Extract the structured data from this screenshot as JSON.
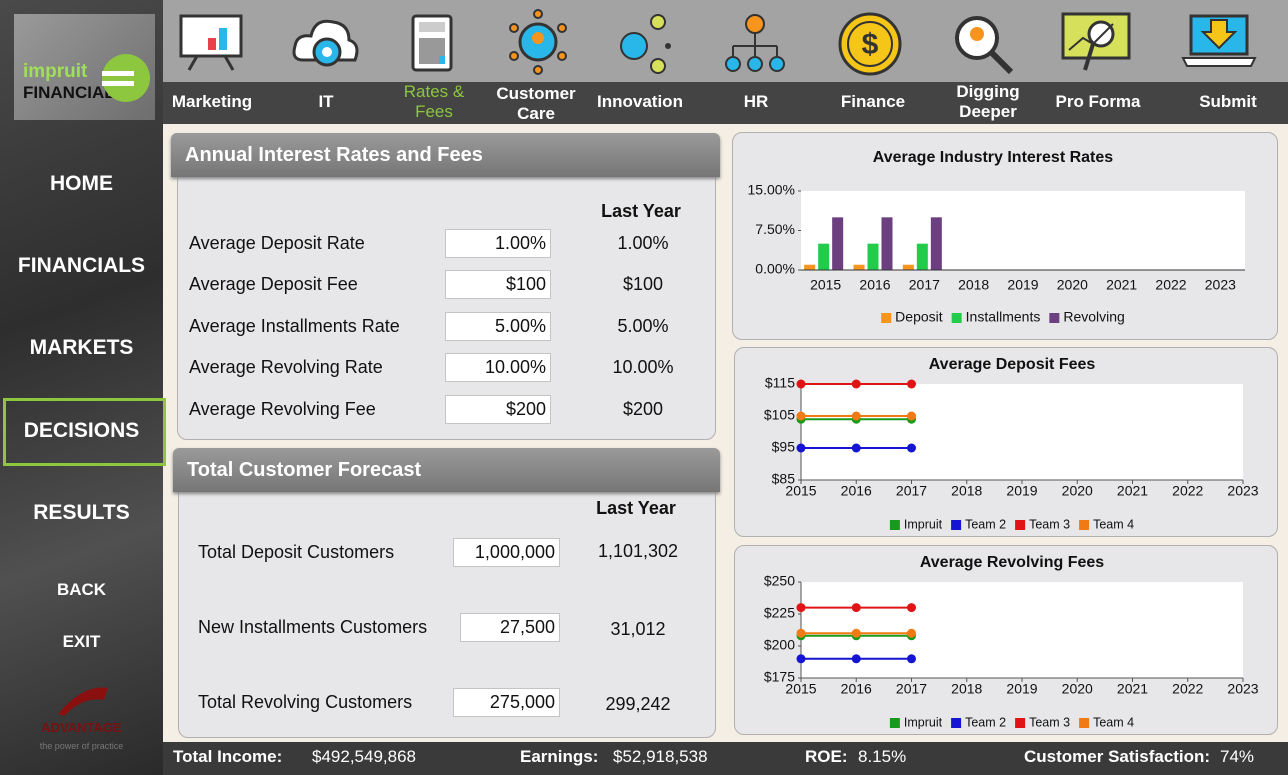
{
  "sidebar": {
    "logo": {
      "brand": "impruit",
      "name": "FINANCIAL"
    },
    "menu": [
      "HOME",
      "FINANCIALS",
      "MARKETS",
      "DECISIONS",
      "RESULTS"
    ],
    "links": [
      "BACK",
      "EXIT"
    ],
    "footer_logo": {
      "name": "ADVANTAGE",
      "tagline": "the power of practice"
    }
  },
  "tabs": [
    "Marketing",
    "IT",
    "Rates & Fees",
    "Customer Care",
    "Innovation",
    "HR",
    "Finance",
    "Digging Deeper",
    "Pro Forma",
    "Submit"
  ],
  "rates_panel": {
    "title": "Annual Interest Rates and Fees",
    "column": "Last Year",
    "rows": [
      {
        "label": "Average Deposit Rate",
        "input": "1.00%",
        "last_year": "1.00%"
      },
      {
        "label": "Average Deposit Fee",
        "input": "$100",
        "last_year": "$100"
      },
      {
        "label": "Average Installments Rate",
        "input": "5.00%",
        "last_year": "5.00%"
      },
      {
        "label": "Average Revolving Rate",
        "input": "10.00%",
        "last_year": "10.00%"
      },
      {
        "label": "Average Revolving Fee",
        "input": "$200",
        "last_year": "$200"
      }
    ]
  },
  "forecast_panel": {
    "title": "Total Customer Forecast",
    "column": "Last Year",
    "rows": [
      {
        "label": "Total Deposit Customers",
        "input": "1,000,000",
        "last_year": "1,101,302"
      },
      {
        "label": "New Installments Customers",
        "input": "27,500",
        "last_year": "31,012"
      },
      {
        "label": "Total Revolving Customers",
        "input": "275,000",
        "last_year": "299,242"
      }
    ]
  },
  "chart_data": [
    {
      "type": "bar",
      "title": "Average Industry Interest Rates",
      "categories": [
        "2015",
        "2016",
        "2017",
        "2018",
        "2019",
        "2020",
        "2021",
        "2022",
        "2023"
      ],
      "series": [
        {
          "name": "Deposit",
          "color": "#f7941d",
          "values": [
            1,
            1,
            1,
            null,
            null,
            null,
            null,
            null,
            null
          ]
        },
        {
          "name": "Installments",
          "color": "#22cc4a",
          "values": [
            5,
            5,
            5,
            null,
            null,
            null,
            null,
            null,
            null
          ]
        },
        {
          "name": "Revolving",
          "color": "#6b3f80",
          "values": [
            10,
            10,
            10,
            null,
            null,
            null,
            null,
            null,
            null
          ]
        }
      ],
      "ylim": [
        0,
        15
      ],
      "yticks": [
        {
          "value": 0,
          "label": "0.00%"
        },
        {
          "value": 7.5,
          "label": "7.50%"
        },
        {
          "value": 15,
          "label": "15.00%"
        }
      ]
    },
    {
      "type": "line",
      "title": "Average Deposit Fees",
      "x": [
        2015,
        2016,
        2017
      ],
      "series": [
        {
          "name": "Impruit",
          "color": "#1a9a1a",
          "values": [
            104,
            104,
            104
          ]
        },
        {
          "name": "Team 2",
          "color": "#1414d2",
          "values": [
            95,
            95,
            95
          ]
        },
        {
          "name": "Team 3",
          "color": "#e01414",
          "values": [
            115,
            115,
            115
          ]
        },
        {
          "name": "Team 4",
          "color": "#f07a14",
          "values": [
            105,
            105,
            105
          ]
        }
      ],
      "xlim": [
        2015,
        2023
      ],
      "xticks": [
        2015,
        2016,
        2017,
        2018,
        2019,
        2020,
        2021,
        2022,
        2023
      ],
      "ylim": [
        85,
        115
      ],
      "yticks": [
        {
          "value": 85,
          "label": "$85"
        },
        {
          "value": 95,
          "label": "$95"
        },
        {
          "value": 105,
          "label": "$105"
        },
        {
          "value": 115,
          "label": "$115"
        }
      ]
    },
    {
      "type": "line",
      "title": "Average Revolving Fees",
      "x": [
        2015,
        2016,
        2017
      ],
      "series": [
        {
          "name": "Impruit",
          "color": "#1a9a1a",
          "values": [
            208,
            208,
            208
          ]
        },
        {
          "name": "Team 2",
          "color": "#1414d2",
          "values": [
            190,
            190,
            190
          ]
        },
        {
          "name": "Team 3",
          "color": "#e01414",
          "values": [
            230,
            230,
            230
          ]
        },
        {
          "name": "Team 4",
          "color": "#f07a14",
          "values": [
            210,
            210,
            210
          ]
        }
      ],
      "xlim": [
        2015,
        2023
      ],
      "xticks": [
        2015,
        2016,
        2017,
        2018,
        2019,
        2020,
        2021,
        2022,
        2023
      ],
      "ylim": [
        175,
        250
      ],
      "yticks": [
        {
          "value": 175,
          "label": "$175"
        },
        {
          "value": 200,
          "label": "$200"
        },
        {
          "value": 225,
          "label": "$225"
        },
        {
          "value": 250,
          "label": "$250"
        }
      ]
    }
  ],
  "status_bar": [
    {
      "label": "Total Income:",
      "value": "$492,549,868"
    },
    {
      "label": "Earnings:",
      "value": "$52,918,538"
    },
    {
      "label": "ROE:",
      "value": "8.15%"
    },
    {
      "label": "Customer Satisfaction:",
      "value": "74%"
    }
  ]
}
